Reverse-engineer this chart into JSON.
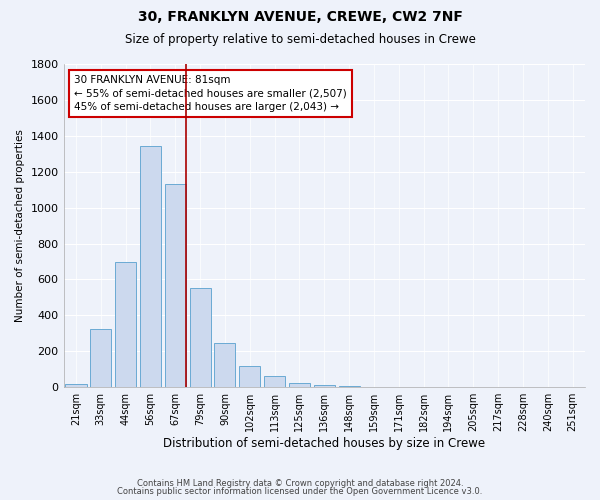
{
  "title": "30, FRANKLYN AVENUE, CREWE, CW2 7NF",
  "subtitle": "Size of property relative to semi-detached houses in Crewe",
  "xlabel": "Distribution of semi-detached houses by size in Crewe",
  "ylabel": "Number of semi-detached properties",
  "bar_color": "#ccd9ee",
  "bar_edge_color": "#6aaad4",
  "background_color": "#eef2fa",
  "grid_color": "#ffffff",
  "categories": [
    "21sqm",
    "33sqm",
    "44sqm",
    "56sqm",
    "67sqm",
    "79sqm",
    "90sqm",
    "102sqm",
    "113sqm",
    "125sqm",
    "136sqm",
    "148sqm",
    "159sqm",
    "171sqm",
    "182sqm",
    "194sqm",
    "205sqm",
    "217sqm",
    "228sqm",
    "240sqm",
    "251sqm"
  ],
  "values": [
    20,
    325,
    695,
    1345,
    1130,
    550,
    245,
    120,
    65,
    25,
    10,
    5,
    3,
    0,
    0,
    0,
    0,
    0,
    0,
    0,
    3
  ],
  "ylim": [
    0,
    1800
  ],
  "yticks": [
    0,
    200,
    400,
    600,
    800,
    1000,
    1200,
    1400,
    1600,
    1800
  ],
  "property_line_label": "30 FRANKLYN AVENUE: 81sqm",
  "annotation_smaller": "← 55% of semi-detached houses are smaller (2,507)",
  "annotation_larger": "45% of semi-detached houses are larger (2,043) →",
  "annotation_box_color": "#ffffff",
  "annotation_box_edge": "#cc0000",
  "property_line_color": "#aa0000",
  "footer1": "Contains HM Land Registry data © Crown copyright and database right 2024.",
  "footer2": "Contains public sector information licensed under the Open Government Licence v3.0."
}
